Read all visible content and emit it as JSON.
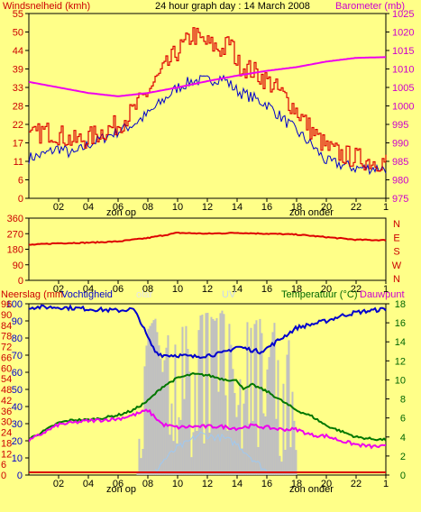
{
  "colors": {
    "background": "#ffff88",
    "frame": "#000000",
    "grid": "#c8c8c8",
    "wind_gust": "#dd0000",
    "wind_avg": "#0000cc",
    "barometer": "#ee00ee",
    "direction": "#dd0000",
    "humidity": "#0000cc",
    "temperature": "#007700",
    "dewpoint": "#ee00ee",
    "rain": "#dd0000",
    "solar": "#c0c0c0",
    "uv": "#9fc8f0",
    "label_red": "#cc0000",
    "label_green": "#006600",
    "label_magenta": "#cc00cc"
  },
  "header": {
    "title": "24 hour graph day : 14 March 2008",
    "wind_label": "Windsnelheid (kmh)",
    "baro_label": "Barometer (mb)"
  },
  "labels": {
    "sunrise": "zon op",
    "sunset": "zon onder",
    "rain": "Neerslag (mm",
    "humidity": "Vochtigheid",
    "solar": "olar",
    "uv": "UV",
    "temperature": "Temperatuur (°C)",
    "dewpoint": "Dauwpunt"
  },
  "chart_data": [
    {
      "type": "line",
      "title": "24 hour graph day : 14 March 2008",
      "x_ticks": [
        "02",
        "04",
        "06",
        "08",
        "10",
        "12",
        "14",
        "16",
        "18",
        "20",
        "22",
        "1"
      ],
      "x_range_hours": [
        0,
        24
      ],
      "y_left": {
        "label": "Windsnelheid (kmh)",
        "ticks": [
          0,
          6,
          11,
          17,
          22,
          28,
          33,
          39,
          44,
          50,
          55
        ],
        "range": [
          0,
          55
        ]
      },
      "y_right": {
        "label": "Barometer (mb)",
        "ticks": [
          975,
          980,
          985,
          990,
          995,
          1000,
          1005,
          1010,
          1015,
          1020,
          1025
        ],
        "range": [
          975,
          1025
        ]
      },
      "grid": false,
      "series": [
        {
          "name": "Windsnelheid",
          "axis": "left",
          "style": "gust",
          "x": [
            0,
            1,
            2,
            3,
            4,
            5,
            6,
            7,
            8,
            9,
            10,
            10.5,
            11,
            11.5,
            12,
            12.5,
            13,
            13.5,
            14,
            15,
            16,
            17,
            18,
            19,
            20,
            21,
            22,
            23,
            24
          ],
          "y": [
            18,
            20,
            19,
            17,
            18,
            20,
            22,
            26,
            32,
            38,
            44,
            46,
            49,
            47,
            46,
            45,
            44,
            47,
            40,
            38,
            35,
            31,
            26,
            20,
            15,
            13,
            12,
            11,
            11
          ]
        },
        {
          "name": "Gemiddelde wind",
          "axis": "left",
          "style": "avg",
          "x": [
            0,
            1,
            2,
            3,
            4,
            5,
            6,
            7,
            8,
            9,
            10,
            11,
            12,
            13,
            14,
            15,
            16,
            17,
            18,
            19,
            20,
            21,
            22,
            23,
            24
          ],
          "y": [
            12,
            13,
            15,
            13,
            16,
            18,
            20,
            22,
            25,
            29,
            33,
            35,
            35,
            36,
            32,
            30,
            28,
            24,
            20,
            16,
            11,
            10,
            9,
            9,
            9
          ]
        },
        {
          "name": "Barometer",
          "axis": "right",
          "style": "baro",
          "x": [
            0,
            2,
            4,
            6,
            8,
            10,
            12,
            14,
            16,
            18,
            20,
            22,
            24
          ],
          "y": [
            1006.5,
            1005,
            1003.5,
            1002.6,
            1003.5,
            1005,
            1006.7,
            1008.2,
            1009.5,
            1010.5,
            1012,
            1013,
            1013.2
          ]
        }
      ]
    },
    {
      "type": "line",
      "x_ticks": [
        "02",
        "04",
        "06",
        "08",
        "10",
        "12",
        "14",
        "16",
        "18",
        "20",
        "22",
        "1"
      ],
      "x_range_hours": [
        0,
        24
      ],
      "y_left": {
        "ticks": [
          0,
          90,
          180,
          270,
          360
        ],
        "range": [
          0,
          360
        ]
      },
      "y_right": {
        "ticks": [
          "N",
          "W",
          "S",
          "E",
          "N"
        ]
      },
      "series": [
        {
          "name": "Windrichting",
          "x": [
            0,
            2,
            4,
            6,
            8,
            10,
            12,
            14,
            16,
            18,
            20,
            22,
            24
          ],
          "y": [
            205,
            215,
            218,
            225,
            245,
            275,
            270,
            275,
            270,
            265,
            250,
            235,
            232
          ]
        }
      ]
    },
    {
      "type": "line",
      "x_ticks": [
        "02",
        "04",
        "06",
        "08",
        "10",
        "12",
        "14",
        "16",
        "18",
        "20",
        "22",
        "1"
      ],
      "x_range_hours": [
        0,
        24
      ],
      "y_left": {
        "ticks": [
          0,
          10,
          20,
          30,
          40,
          50,
          60,
          70,
          80,
          90,
          100
        ],
        "range": [
          0,
          100
        ]
      },
      "y_left_outer": {
        "label": "Neerslag (mm",
        "ticks": [
          0,
          6,
          12,
          18,
          24,
          30,
          36,
          42,
          48,
          54,
          60,
          66,
          72,
          78,
          84,
          90,
          96
        ]
      },
      "y_right": {
        "label": "Temperatuur (°C) Dauwpunt",
        "ticks": [
          0,
          2,
          4,
          6,
          8,
          10,
          12,
          14,
          16,
          18
        ],
        "range": [
          0,
          18
        ]
      },
      "series": [
        {
          "name": "Vochtigheid",
          "axis": "left",
          "x": [
            0,
            2,
            4,
            6,
            7,
            7.5,
            8,
            8.5,
            9,
            10,
            11,
            12,
            13,
            14,
            15,
            15.5,
            16,
            17,
            18,
            19,
            20,
            21,
            22,
            23,
            24
          ],
          "y": [
            98,
            98,
            97,
            96,
            97,
            90,
            80,
            72,
            70,
            70,
            69,
            70,
            71,
            75,
            73,
            72,
            74,
            80,
            86,
            88,
            90,
            93,
            95,
            96,
            97
          ]
        },
        {
          "name": "Temperatuur",
          "axis": "right",
          "x": [
            0,
            1,
            2,
            3,
            4,
            5,
            6,
            7,
            8,
            9,
            10,
            11,
            12,
            13,
            14,
            14.5,
            15,
            16,
            17,
            18,
            19,
            20,
            21,
            22,
            23,
            24
          ],
          "y": [
            3.8,
            4.6,
            5.5,
            5.8,
            5.8,
            6.0,
            6.3,
            6.8,
            7.8,
            9.3,
            10.2,
            10.6,
            10.5,
            10.1,
            9.9,
            9.0,
            9.5,
            8.8,
            7.8,
            6.8,
            6.2,
            5.2,
            4.6,
            4.0,
            3.8,
            3.7
          ]
        },
        {
          "name": "Dauwpunt",
          "axis": "right",
          "x": [
            0,
            2,
            4,
            6,
            7,
            8,
            9,
            10,
            11,
            12,
            13,
            14,
            15,
            16,
            17,
            18,
            19,
            20,
            21,
            22,
            23,
            24
          ],
          "y": [
            3.6,
            5.3,
            5.7,
            5.9,
            6.3,
            6.8,
            5.3,
            5.0,
            5.1,
            5.1,
            5.1,
            4.9,
            5.2,
            5.0,
            4.8,
            4.8,
            4.2,
            4.1,
            3.6,
            3.2,
            3.0,
            3.0
          ]
        },
        {
          "name": "Solar",
          "axis": "left",
          "x": [
            7.3,
            7.6,
            8,
            8.5,
            9,
            9.5,
            10,
            10.5,
            11,
            11.5,
            12,
            12.5,
            13,
            13.5,
            14,
            14.5,
            15,
            15.5,
            16,
            16.5,
            17,
            17.5,
            18
          ],
          "y": [
            5,
            45,
            85,
            92,
            60,
            90,
            70,
            95,
            40,
            93,
            95,
            90,
            96,
            88,
            30,
            92,
            85,
            94,
            60,
            90,
            45,
            80,
            10
          ]
        },
        {
          "name": "UV",
          "axis": "left",
          "x": [
            8.5,
            9,
            9.5,
            10,
            10.5,
            11,
            11.5,
            12,
            12.5,
            13,
            13.5,
            14,
            14.5,
            15,
            15.5,
            16
          ],
          "y": [
            2,
            8,
            12,
            16,
            18,
            21,
            24,
            23,
            22,
            22,
            20,
            18,
            14,
            10,
            6,
            2
          ]
        },
        {
          "name": "Neerslag",
          "axis": "left",
          "x": [
            0,
            24
          ],
          "y": [
            0,
            0
          ]
        }
      ]
    }
  ]
}
